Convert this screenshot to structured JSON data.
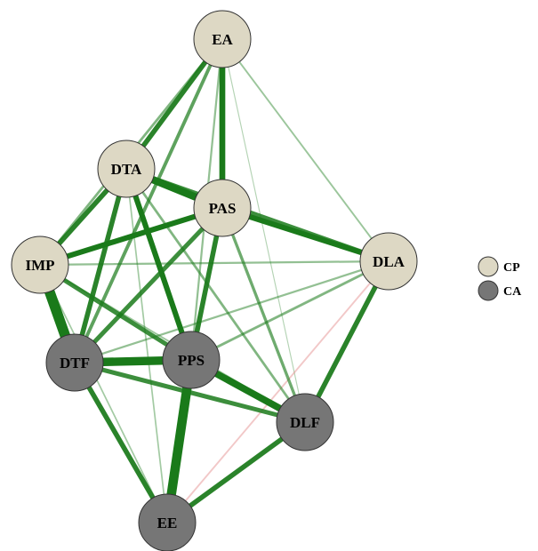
{
  "colors": {
    "positive_edge": "#1a7a1a",
    "negative_edge": "#e08080",
    "group_cp_fill": "#ddd8c4",
    "group_ca_fill": "#767676",
    "node_stroke": "#333333"
  },
  "legend": [
    {
      "group": "CP",
      "label": "CP"
    },
    {
      "group": "CA",
      "label": "CA"
    }
  ],
  "nodes": [
    {
      "id": "EA",
      "label": "EA",
      "group": "CP"
    },
    {
      "id": "DTA",
      "label": "DTA",
      "group": "CP"
    },
    {
      "id": "PAS",
      "label": "PAS",
      "group": "CP"
    },
    {
      "id": "IMP",
      "label": "IMP",
      "group": "CP"
    },
    {
      "id": "DLA",
      "label": "DLA",
      "group": "CP"
    },
    {
      "id": "DTF",
      "label": "DTF",
      "group": "CA"
    },
    {
      "id": "PPS",
      "label": "PPS",
      "group": "CA"
    },
    {
      "id": "DLF",
      "label": "DLF",
      "group": "CA"
    },
    {
      "id": "EE",
      "label": "EE",
      "group": "CA"
    }
  ],
  "edges": [
    {
      "from": "IMP",
      "to": "DTF",
      "weight": 1.0,
      "sign": "positive"
    },
    {
      "from": "EE",
      "to": "PPS",
      "weight": 0.9,
      "sign": "positive"
    },
    {
      "from": "DTF",
      "to": "PPS",
      "weight": 0.8,
      "sign": "positive"
    },
    {
      "from": "DTA",
      "to": "PAS",
      "weight": 0.7,
      "sign": "positive"
    },
    {
      "from": "PPS",
      "to": "DLF",
      "weight": 0.65,
      "sign": "positive"
    },
    {
      "from": "EA",
      "to": "PAS",
      "weight": 0.55,
      "sign": "positive"
    },
    {
      "from": "DTA",
      "to": "PPS",
      "weight": 0.5,
      "sign": "positive"
    },
    {
      "from": "PAS",
      "to": "DLA",
      "weight": 0.5,
      "sign": "positive"
    },
    {
      "from": "IMP",
      "to": "PAS",
      "weight": 0.5,
      "sign": "positive"
    },
    {
      "from": "EA",
      "to": "DTA",
      "weight": 0.45,
      "sign": "positive"
    },
    {
      "from": "DTF",
      "to": "EE",
      "weight": 0.45,
      "sign": "positive"
    },
    {
      "from": "DLF",
      "to": "EE",
      "weight": 0.45,
      "sign": "positive"
    },
    {
      "from": "DLA",
      "to": "DLF",
      "weight": 0.45,
      "sign": "positive"
    },
    {
      "from": "DTA",
      "to": "DTF",
      "weight": 0.45,
      "sign": "positive"
    },
    {
      "from": "PAS",
      "to": "PPS",
      "weight": 0.45,
      "sign": "positive"
    },
    {
      "from": "DTA",
      "to": "IMP",
      "weight": 0.45,
      "sign": "positive"
    },
    {
      "from": "PAS",
      "to": "DTF",
      "weight": 0.4,
      "sign": "positive"
    },
    {
      "from": "IMP",
      "to": "PPS",
      "weight": 0.4,
      "sign": "positive"
    },
    {
      "from": "DTA",
      "to": "DLA",
      "weight": 0.4,
      "sign": "positive"
    },
    {
      "from": "DTF",
      "to": "DLF",
      "weight": 0.4,
      "sign": "positive"
    },
    {
      "from": "EA",
      "to": "DTF",
      "weight": 0.3,
      "sign": "positive"
    },
    {
      "from": "PAS",
      "to": "DLF",
      "weight": 0.25,
      "sign": "positive"
    },
    {
      "from": "DTA",
      "to": "DLF",
      "weight": 0.2,
      "sign": "positive"
    },
    {
      "from": "PPS",
      "to": "DLA",
      "weight": 0.2,
      "sign": "positive"
    },
    {
      "from": "EA",
      "to": "IMP",
      "weight": 0.2,
      "sign": "positive"
    },
    {
      "from": "EA",
      "to": "PPS",
      "weight": 0.15,
      "sign": "positive"
    },
    {
      "from": "IMP",
      "to": "DLA",
      "weight": 0.15,
      "sign": "positive"
    },
    {
      "from": "DTF",
      "to": "DLA",
      "weight": 0.15,
      "sign": "positive"
    },
    {
      "from": "EA",
      "to": "DLA",
      "weight": 0.12,
      "sign": "positive"
    },
    {
      "from": "IMP",
      "to": "EE",
      "weight": 0.1,
      "sign": "positive"
    },
    {
      "from": "DTA",
      "to": "EE",
      "weight": 0.1,
      "sign": "positive"
    },
    {
      "from": "IMP",
      "to": "DLF",
      "weight": 0.12,
      "sign": "positive"
    },
    {
      "from": "EA",
      "to": "DLF",
      "weight": 0.05,
      "sign": "positive"
    },
    {
      "from": "DLA",
      "to": "EE",
      "weight": 0.12,
      "sign": "negative"
    }
  ]
}
